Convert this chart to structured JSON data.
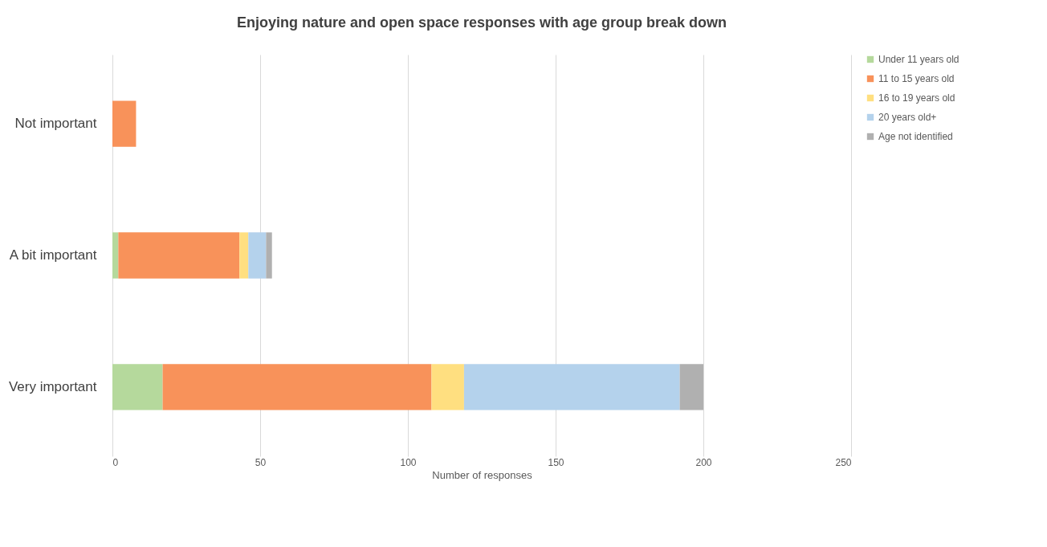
{
  "chart_data": {
    "type": "bar",
    "orientation": "horizontal",
    "stacked": true,
    "title": "Enjoying nature and open space responses with age group break down",
    "xlabel": "Number of responses",
    "categories": [
      "Not important",
      "A bit important",
      "Very important"
    ],
    "series": [
      {
        "name": "Under 11 years old",
        "color": "#b5d99c",
        "values": [
          0,
          2,
          17
        ]
      },
      {
        "name": "11 to 15 years old",
        "color": "#f8925a",
        "values": [
          8,
          41,
          91
        ]
      },
      {
        "name": "16 to 19 years old",
        "color": "#ffdf80",
        "values": [
          0,
          3,
          11
        ]
      },
      {
        "name": "20 years old+",
        "color": "#b4d2ec",
        "values": [
          0,
          6,
          73
        ]
      },
      {
        "name": "Age not identified",
        "color": "#b0b0b0",
        "values": [
          0,
          2,
          8
        ]
      }
    ],
    "xlim": [
      0,
      250
    ],
    "xticks": [
      0,
      50,
      100,
      150,
      200,
      250
    ],
    "grid": "x",
    "legend": "right"
  }
}
